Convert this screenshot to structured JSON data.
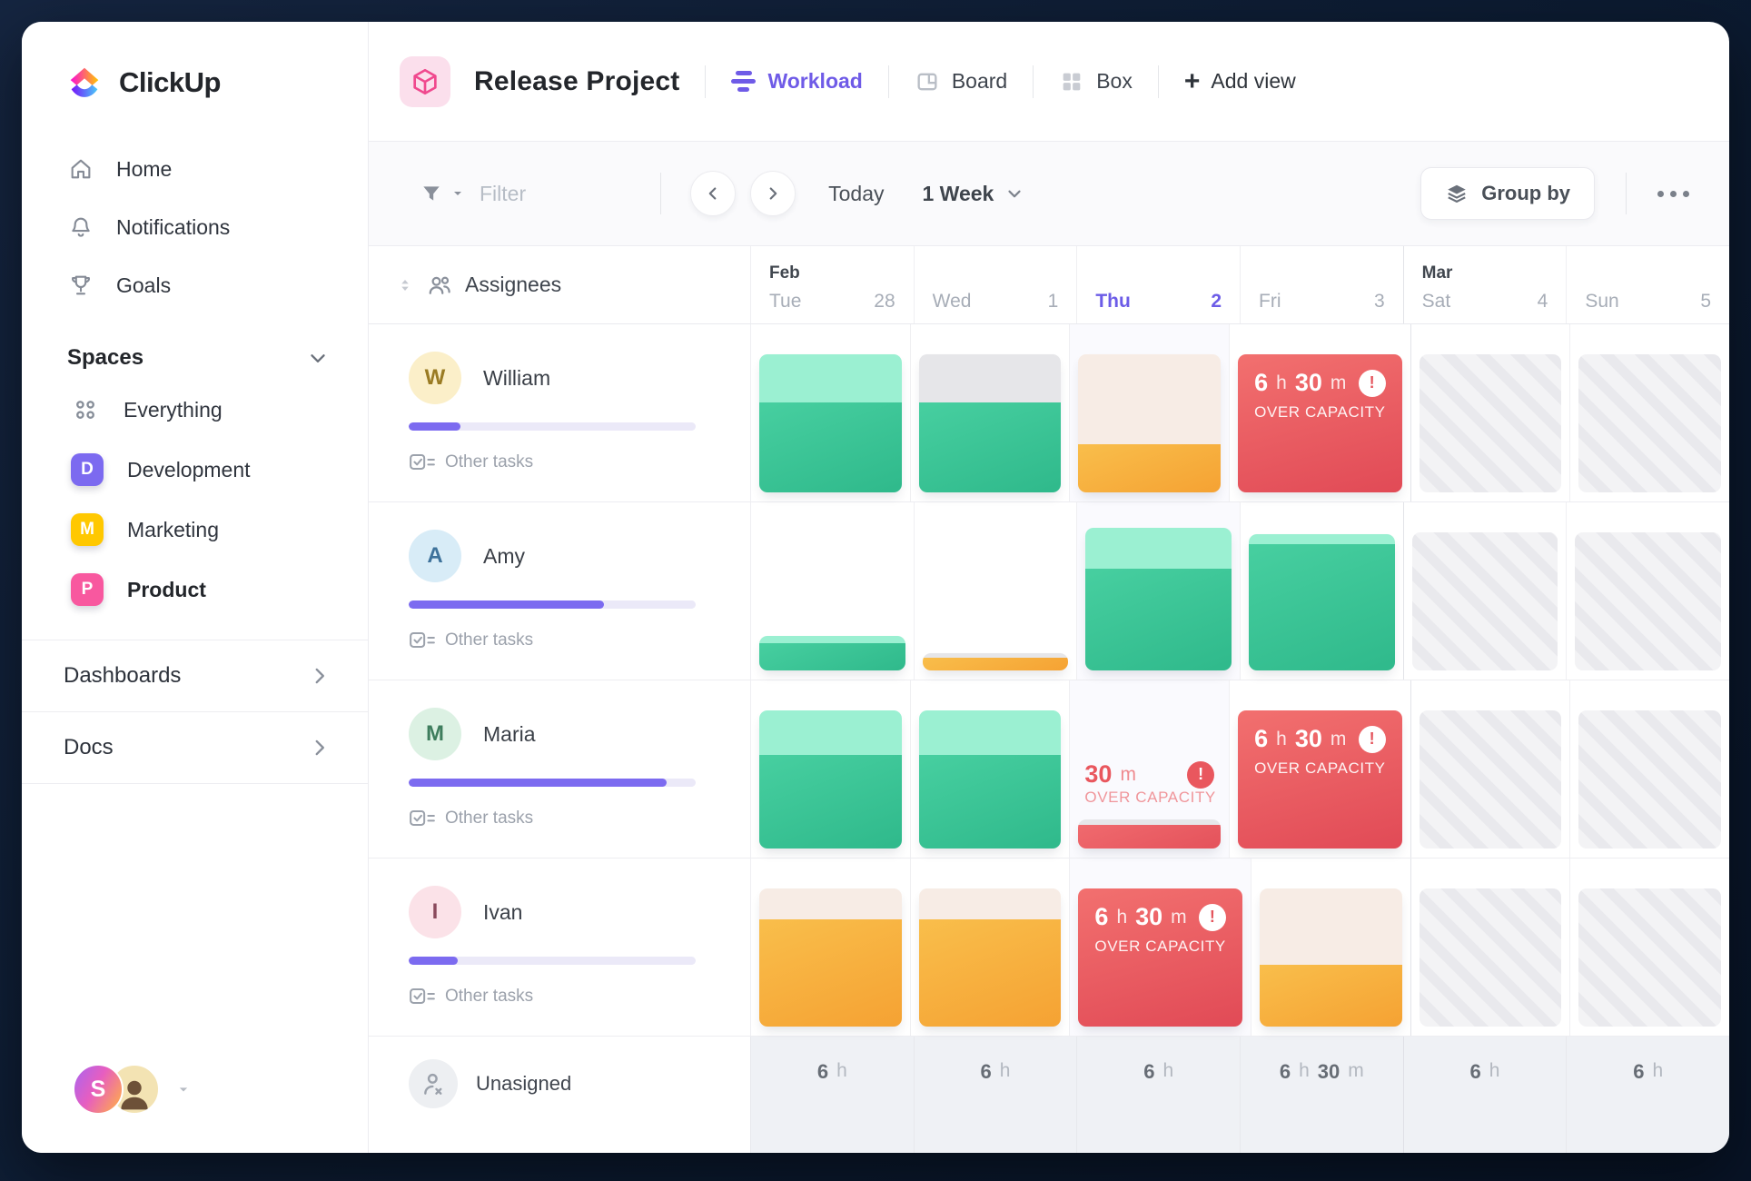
{
  "sidebar": {
    "logo_text": "ClickUp",
    "nav": [
      {
        "label": "Home",
        "icon": "home-icon"
      },
      {
        "label": "Notifications",
        "icon": "bell-icon"
      },
      {
        "label": "Goals",
        "icon": "trophy-icon"
      }
    ],
    "spaces": {
      "title": "Spaces",
      "items": [
        {
          "label": "Everything",
          "icon": "grid-dots-icon"
        },
        {
          "label": "Development",
          "badge": "D",
          "badge_color": "#7C6AF0"
        },
        {
          "label": "Marketing",
          "badge": "M",
          "badge_color": "#FFC800"
        },
        {
          "label": "Product",
          "badge": "P",
          "badge_color": "#F8589F",
          "active": true
        }
      ]
    },
    "links": [
      {
        "label": "Dashboards"
      },
      {
        "label": "Docs"
      }
    ],
    "user": {
      "initial": "S"
    }
  },
  "header": {
    "project_title": "Release Project",
    "views": [
      {
        "label": "Workload",
        "active": true
      },
      {
        "label": "Board"
      },
      {
        "label": "Box"
      }
    ],
    "add_view_label": "Add view"
  },
  "toolbar": {
    "filter_label": "Filter",
    "today_label": "Today",
    "range_label": "1 Week",
    "group_by_label": "Group by"
  },
  "grid": {
    "assignees_header": "Assignees",
    "days": [
      {
        "month": "Feb",
        "name": "Tue",
        "num": "28"
      },
      {
        "name": "Wed",
        "num": "1"
      },
      {
        "name": "Thu",
        "num": "2",
        "today": true
      },
      {
        "name": "Fri",
        "num": "3"
      },
      {
        "month": "Mar",
        "name": "Sat",
        "num": "4",
        "weekend": true,
        "month_start": true
      },
      {
        "name": "Sun",
        "num": "5",
        "weekend": true
      }
    ],
    "over_capacity_label": "OVER CAPACITY",
    "rows": [
      {
        "name": "William",
        "progress": 18,
        "other_tasks_label": "Other tasks",
        "avatar_bg": "#FBEFC9",
        "avatar_fg": "#9a7b23",
        "cells": [
          {
            "type": "stack",
            "segments": [
              [
                "mint",
                53
              ],
              [
                "green",
                99
              ]
            ]
          },
          {
            "type": "stack",
            "segments": [
              [
                "gray",
                53
              ],
              [
                "green",
                99
              ]
            ]
          },
          {
            "type": "stack",
            "segments": [
              [
                "peach",
                99
              ],
              [
                "orange",
                53
              ]
            ]
          },
          {
            "type": "over_card",
            "hours": "6",
            "hours_unit": "h",
            "mins": "30",
            "mins_unit": "m"
          },
          {
            "type": "weekend"
          },
          {
            "type": "weekend"
          }
        ]
      },
      {
        "name": "Amy",
        "progress": 68,
        "other_tasks_label": "Other tasks",
        "avatar_bg": "#D8ECF7",
        "avatar_fg": "#3e729b",
        "cells": [
          {
            "type": "stack",
            "segments": [
              [
                "mint",
                8
              ],
              [
                "green",
                30
              ]
            ]
          },
          {
            "type": "stack",
            "segments": [
              [
                "gray",
                5
              ],
              [
                "orange",
                14
              ]
            ]
          },
          {
            "type": "stack",
            "segments": [
              [
                "mint",
                45
              ],
              [
                "green",
                112
              ]
            ]
          },
          {
            "type": "stack",
            "segments": [
              [
                "mint",
                11
              ],
              [
                "green",
                139
              ]
            ]
          },
          {
            "type": "weekend"
          },
          {
            "type": "weekend"
          }
        ]
      },
      {
        "name": "Maria",
        "progress": 90,
        "other_tasks_label": "Other tasks",
        "avatar_bg": "#DCF1E3",
        "avatar_fg": "#3e7d5d",
        "cells": [
          {
            "type": "stack",
            "segments": [
              [
                "mint",
                49
              ],
              [
                "green",
                103
              ]
            ]
          },
          {
            "type": "stack",
            "segments": [
              [
                "mint",
                49
              ],
              [
                "green",
                103
              ]
            ]
          },
          {
            "type": "over_inline",
            "mins": "30",
            "mins_unit": "m",
            "segments": [
              [
                "gray",
                6
              ],
              [
                "red",
                26
              ]
            ]
          },
          {
            "type": "over_card",
            "hours": "6",
            "hours_unit": "h",
            "mins": "30",
            "mins_unit": "m"
          },
          {
            "type": "weekend"
          },
          {
            "type": "weekend"
          }
        ]
      },
      {
        "name": "Ivan",
        "progress": 17,
        "other_tasks_label": "Other tasks",
        "avatar_bg": "#FBE2E8",
        "avatar_fg": "#8a4a5c",
        "cells": [
          {
            "type": "stack",
            "segments": [
              [
                "peach",
                34
              ],
              [
                "orange",
                118
              ]
            ]
          },
          {
            "type": "stack",
            "segments": [
              [
                "peach",
                34
              ],
              [
                "orange",
                118
              ]
            ]
          },
          {
            "type": "over_card",
            "hours": "6",
            "hours_unit": "h",
            "mins": "30",
            "mins_unit": "m"
          },
          {
            "type": "stack",
            "segments": [
              [
                "peach",
                84
              ],
              [
                "orange",
                68
              ]
            ]
          },
          {
            "type": "weekend"
          },
          {
            "type": "weekend"
          }
        ]
      }
    ],
    "unassigned_label": "Unasigned",
    "totals": [
      {
        "parts": [
          [
            "6",
            "h"
          ]
        ]
      },
      {
        "parts": [
          [
            "6",
            "h"
          ]
        ]
      },
      {
        "parts": [
          [
            "6",
            "h"
          ]
        ]
      },
      {
        "parts": [
          [
            "6",
            "h"
          ],
          [
            "30",
            "m"
          ]
        ]
      },
      {
        "parts": [
          [
            "6",
            "h"
          ]
        ]
      },
      {
        "parts": [
          [
            "6",
            "h"
          ]
        ]
      }
    ]
  },
  "colors": {
    "accent_purple": "#6C5CE7",
    "mint": "#9BF0D2",
    "green": "#3FC79B",
    "orange": "#F7A93B",
    "peach": "#F7ECE5",
    "red": "#E85A60",
    "segment_gray": "#E6E6E9",
    "progress_fill": "#7C6BF0",
    "badge_development": "#7C6AF0",
    "badge_marketing": "#FFC800",
    "badge_product": "#F8589F"
  },
  "icons": [
    "clickup-logo-icon",
    "home-icon",
    "bell-icon",
    "trophy-icon",
    "grid-dots-icon",
    "chevron-down-icon",
    "chevron-right-icon",
    "cube-icon",
    "workload-bars-icon",
    "board-icon",
    "box-grid-icon",
    "plus-icon",
    "filter-icon",
    "chevron-left-icon",
    "today-arrows",
    "layers-icon",
    "ellipsis-icon",
    "sort-icon",
    "people-icon",
    "checkbox-equals-icon",
    "person-x-icon",
    "alert-icon"
  ]
}
